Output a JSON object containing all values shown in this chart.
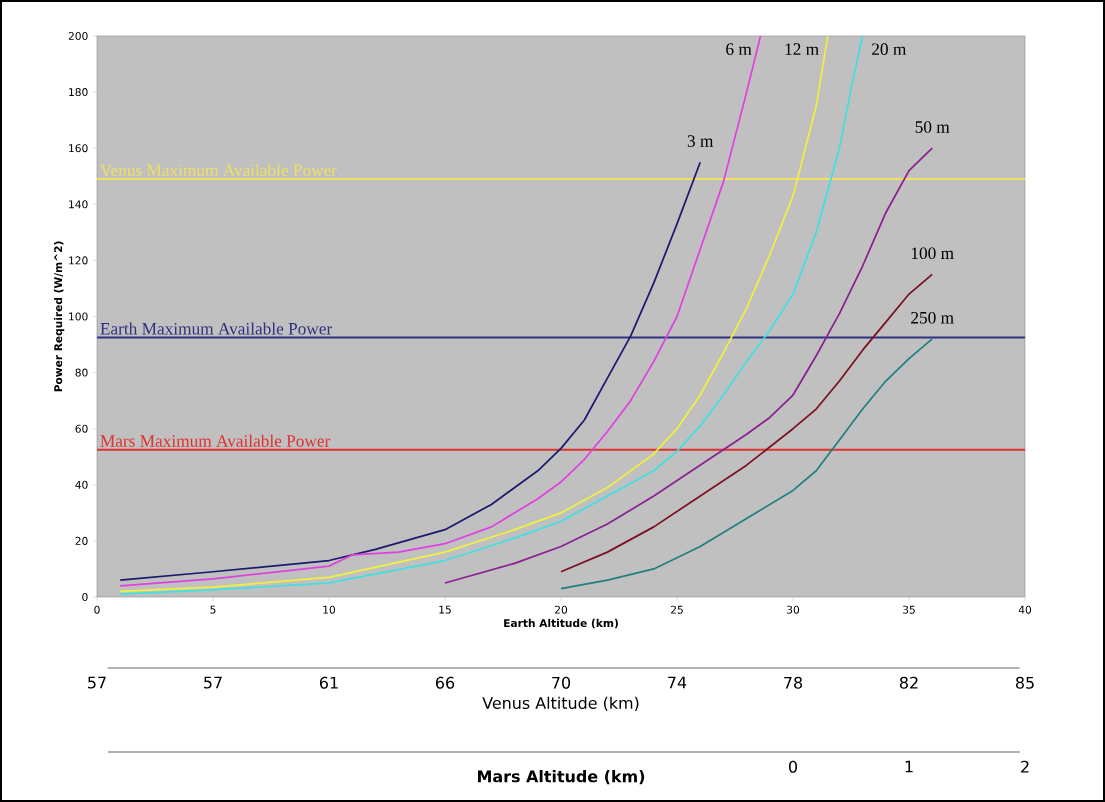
{
  "chart_data": {
    "type": "line",
    "xlabel": "Earth Altitude (km)",
    "ylabel": "Power Required (W/m^2)",
    "annotations": [
      "Venus Altitude (km)",
      "57",
      "57",
      "61",
      "66",
      "70",
      "74",
      "78",
      "82",
      "85",
      "Mars Altitude (km)",
      "0",
      "1",
      "2"
    ],
    "xlim": [
      0,
      40
    ],
    "xticks": [
      0,
      5,
      10,
      15,
      20,
      25,
      30,
      35,
      40
    ],
    "ylim": [
      0,
      200
    ],
    "yticks": [
      0,
      20,
      40,
      60,
      80,
      100,
      120,
      140,
      160,
      180,
      200
    ],
    "ref_lines": [
      {
        "axis": "y",
        "value": 149,
        "label": "Venus Maximum Available Power",
        "color": "#f0e060"
      },
      {
        "axis": "y",
        "value": 92.5,
        "label": "Earth Maximum Available Power",
        "color": "#303080"
      },
      {
        "axis": "y",
        "value": 52.5,
        "label": "Mars Maximum Available Power",
        "color": "#e03030"
      }
    ],
    "series": [
      {
        "name": "3 m",
        "color": "#1a1a6e",
        "x": [
          1,
          5,
          10,
          12,
          15,
          17,
          19,
          20,
          21,
          22,
          23,
          24,
          25,
          26
        ],
        "values": [
          6,
          9,
          13,
          17,
          24,
          33,
          45,
          53,
          63,
          78,
          93,
          112,
          133,
          155
        ]
      },
      {
        "name": "6 m",
        "color": "#e040e0",
        "x": [
          1,
          5,
          10,
          11,
          13,
          15,
          17,
          19,
          20,
          21,
          22,
          23,
          24,
          25,
          26,
          27,
          28,
          28.6
        ],
        "values": [
          4,
          6.5,
          11,
          15,
          16,
          19,
          25,
          35,
          41,
          49,
          59,
          70,
          84,
          100,
          124,
          148,
          180,
          200
        ]
      },
      {
        "name": "12 m",
        "color": "#f0f040",
        "x": [
          1,
          5,
          10,
          15,
          18,
          20,
          22,
          24,
          25,
          26,
          27,
          28,
          29,
          30,
          31,
          31.5
        ],
        "values": [
          2,
          3.5,
          7,
          16,
          24,
          30,
          39,
          51,
          60,
          72,
          87,
          103,
          122,
          143,
          175,
          200
        ]
      },
      {
        "name": "20 m",
        "color": "#40e0e0",
        "x": [
          1,
          5,
          10,
          15,
          18,
          20,
          22,
          24,
          25,
          26,
          27,
          28,
          29,
          30,
          31,
          32,
          32.6,
          33
        ],
        "values": [
          1,
          2.5,
          5,
          13,
          21,
          27,
          36,
          45,
          52,
          61,
          72,
          84,
          95,
          108,
          130,
          160,
          185,
          200
        ]
      },
      {
        "name": "50 m",
        "color": "#8a2090",
        "x": [
          15,
          18,
          20,
          22,
          24,
          26,
          28,
          29,
          30,
          31,
          32,
          33,
          34,
          35,
          36
        ],
        "values": [
          5,
          12,
          18,
          26,
          36,
          47,
          58,
          64,
          72,
          86,
          101,
          118,
          137,
          152,
          160
        ]
      },
      {
        "name": "100 m",
        "color": "#7a1020",
        "x": [
          20,
          22,
          24,
          26,
          28,
          30,
          31,
          32,
          33,
          34,
          35,
          36
        ],
        "values": [
          9,
          16,
          25,
          36,
          47,
          60,
          67,
          77,
          88,
          98,
          108,
          115
        ]
      },
      {
        "name": "250 m",
        "color": "#208080",
        "x": [
          20,
          22,
          24,
          26,
          28,
          30,
          31,
          32,
          33,
          34,
          35,
          36
        ],
        "values": [
          3,
          6,
          10,
          18,
          28,
          38,
          45,
          56,
          67,
          77,
          85,
          92
        ]
      }
    ]
  }
}
